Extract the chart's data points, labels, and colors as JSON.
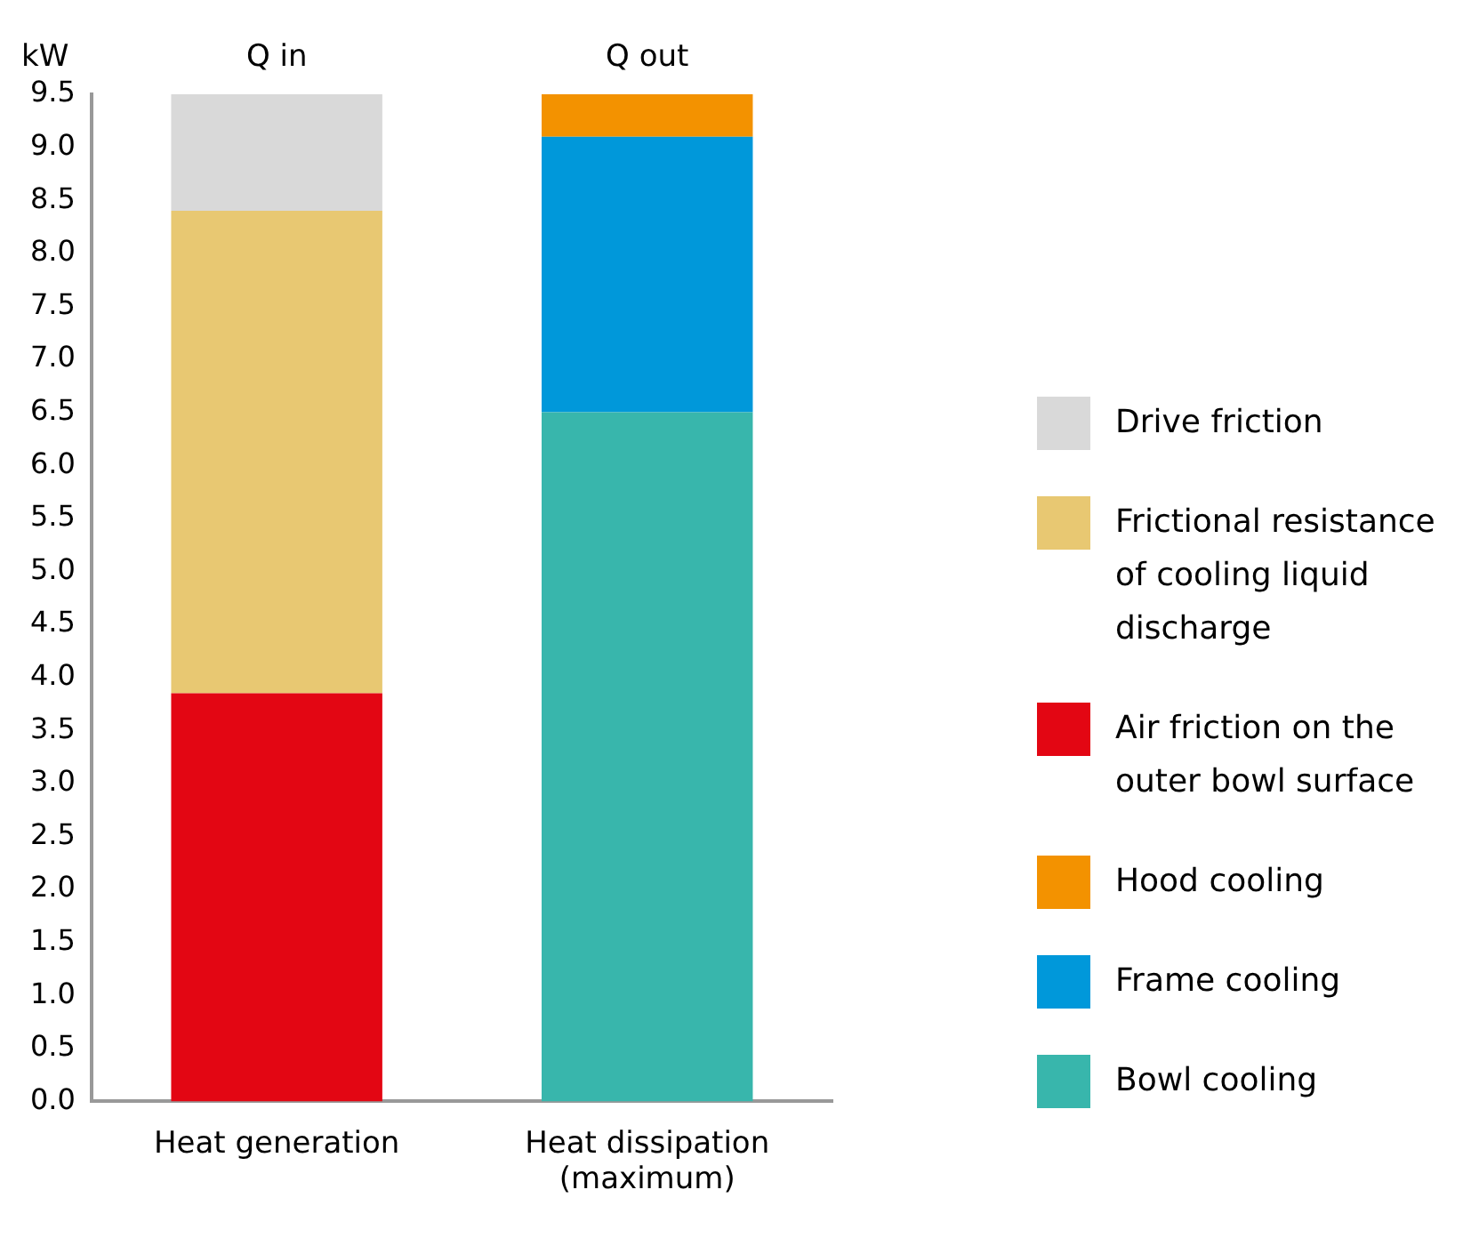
{
  "chart_data": {
    "type": "bar",
    "stacked": true,
    "ylabel": "kW",
    "categories": [
      "Heat generation",
      "Heat dissipation\n(maximum)"
    ],
    "series": [
      {
        "name": "Bowl cooling",
        "color": "#38b6ac",
        "values": [
          null,
          6.5
        ]
      },
      {
        "name": "Frame cooling",
        "color": "#0098da",
        "values": [
          null,
          2.6
        ]
      },
      {
        "name": "Hood cooling",
        "color": "#f39200",
        "values": [
          null,
          0.4
        ]
      },
      {
        "name": "Air friction on the outer bowl surface",
        "color": "#e30613",
        "values": [
          3.85,
          null
        ]
      },
      {
        "name": "Frictional resistance of cooling liquid discharge",
        "color": "#e8c872",
        "values": [
          4.55,
          null
        ]
      },
      {
        "name": "Drive friction",
        "color": "#d9d9d9",
        "values": [
          1.1,
          null
        ]
      }
    ],
    "annotations": [
      "Q in",
      "Q out"
    ],
    "ylim": [
      0,
      9.5
    ],
    "yticks": [
      {
        "value": 0,
        "label": "0.0"
      },
      {
        "value": 0.5,
        "label": "0.5"
      },
      {
        "value": 1,
        "label": "1.0"
      },
      {
        "value": 1.5,
        "label": "1.5"
      },
      {
        "value": 2,
        "label": "2.0"
      },
      {
        "value": 2.5,
        "label": "2.5"
      },
      {
        "value": 3,
        "label": "3.0"
      },
      {
        "value": 3.5,
        "label": "3.5"
      },
      {
        "value": 4,
        "label": "4.0"
      },
      {
        "value": 4.5,
        "label": "4.5"
      },
      {
        "value": 5,
        "label": "5.0"
      },
      {
        "value": 5.5,
        "label": "5.5"
      },
      {
        "value": 6,
        "label": "6.0"
      },
      {
        "value": 6.5,
        "label": "6.5"
      },
      {
        "value": 7,
        "label": "7.0"
      },
      {
        "value": 7.5,
        "label": "7.5"
      },
      {
        "value": 8,
        "label": "8.0"
      },
      {
        "value": 8.5,
        "label": "8.5"
      },
      {
        "value": 9,
        "label": "9.0"
      },
      {
        "value": 9.5,
        "label": "9.5"
      }
    ],
    "grid": false,
    "legend": "right"
  }
}
